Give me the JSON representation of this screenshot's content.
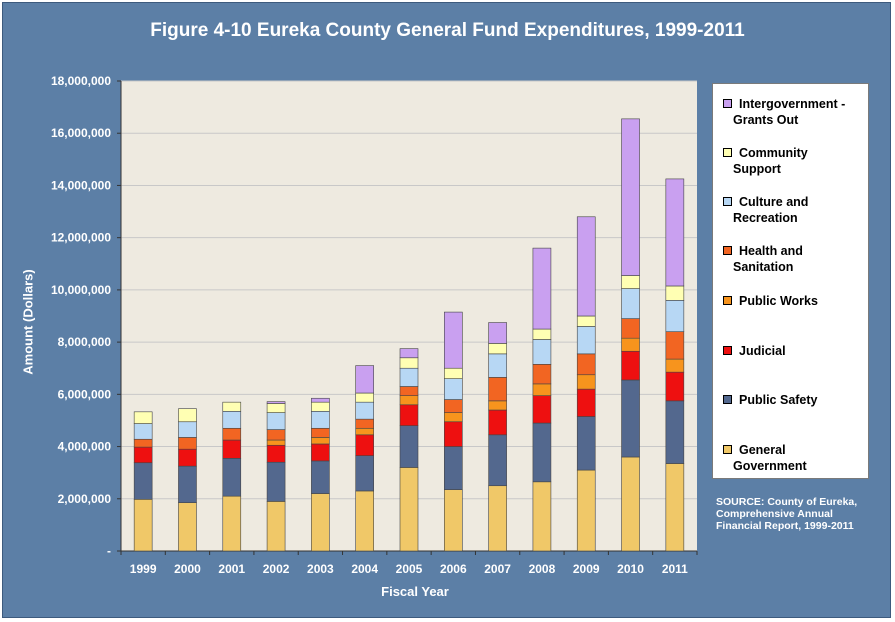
{
  "chart_data": {
    "type": "bar",
    "stacked": true,
    "title": "Figure  4-10 Eureka County General Fund Expenditures, 1999-2011",
    "xlabel": "Fiscal Year",
    "ylabel": "Amount (Dollars)",
    "ylim": [
      0,
      18000000
    ],
    "yticks": [
      {
        "value": 0,
        "label": "-"
      },
      {
        "value": 2000000,
        "label": "2,000,000"
      },
      {
        "value": 4000000,
        "label": "4,000,000"
      },
      {
        "value": 6000000,
        "label": "6,000,000"
      },
      {
        "value": 8000000,
        "label": "8,000,000"
      },
      {
        "value": 10000000,
        "label": "10,000,000"
      },
      {
        "value": 12000000,
        "label": "12,000,000"
      },
      {
        "value": 14000000,
        "label": "14,000,000"
      },
      {
        "value": 16000000,
        "label": "16,000,000"
      },
      {
        "value": 18000000,
        "label": "18,000,000"
      }
    ],
    "categories": [
      "1999",
      "2000",
      "2001",
      "2002",
      "2003",
      "2004",
      "2005",
      "2006",
      "2007",
      "2008",
      "2009",
      "2010",
      "2011"
    ],
    "series": [
      {
        "name": "General Government",
        "color": "#f0c868",
        "values": [
          1980000,
          1850000,
          2100000,
          1900000,
          2200000,
          2300000,
          3200000,
          2350000,
          2500000,
          2650000,
          3100000,
          3600000,
          3350000
        ]
      },
      {
        "name": "Public Safety",
        "color": "#53688e",
        "values": [
          1400000,
          1400000,
          1450000,
          1500000,
          1250000,
          1350000,
          1600000,
          1650000,
          1950000,
          2250000,
          2050000,
          2950000,
          2400000
        ]
      },
      {
        "name": "Judicial",
        "color": "#ee1010",
        "values": [
          600000,
          650000,
          700000,
          650000,
          650000,
          800000,
          800000,
          950000,
          950000,
          1050000,
          1050000,
          1100000,
          1100000
        ]
      },
      {
        "name": "Public Works",
        "color": "#f7941d",
        "values": [
          0,
          0,
          0,
          200000,
          250000,
          250000,
          350000,
          350000,
          350000,
          450000,
          550000,
          500000,
          500000
        ]
      },
      {
        "name": "Health and Sanitation",
        "color": "#f26522",
        "values": [
          300000,
          450000,
          450000,
          400000,
          350000,
          350000,
          350000,
          500000,
          900000,
          750000,
          800000,
          750000,
          1050000
        ]
      },
      {
        "name": "Culture and Recreation",
        "color": "#b7d7f4",
        "values": [
          600000,
          600000,
          650000,
          650000,
          650000,
          650000,
          700000,
          800000,
          900000,
          950000,
          1050000,
          1150000,
          1200000
        ]
      },
      {
        "name": "Community Support",
        "color": "#ffffb3",
        "values": [
          450000,
          500000,
          350000,
          350000,
          350000,
          350000,
          400000,
          400000,
          400000,
          400000,
          400000,
          500000,
          550000
        ]
      },
      {
        "name": "Intergovernment - Grants Out",
        "color": "#c9a0f0",
        "values": [
          0,
          0,
          0,
          70000,
          150000,
          1050000,
          350000,
          2150000,
          800000,
          3100000,
          3800000,
          6000000,
          4100000
        ]
      }
    ],
    "legend_placement": "right",
    "grid": true,
    "colors": {
      "frame": "#5c7fa6",
      "plot_bg": "#eeeae0",
      "gridline": "#c8c8c8"
    }
  },
  "legend": [
    {
      "line1": "Intergovernment -",
      "line2": "Grants Out",
      "color": "#c9a0f0"
    },
    {
      "line1": "Community",
      "line2": "Support",
      "color": "#ffffb3"
    },
    {
      "line1": "Culture and",
      "line2": "Recreation",
      "color": "#b7d7f4"
    },
    {
      "line1": "Health and",
      "line2": "Sanitation",
      "color": "#f26522"
    },
    {
      "line1": "Public Works",
      "line2": "",
      "color": "#f7941d"
    },
    {
      "line1": "Judicial",
      "line2": "",
      "color": "#ee1010"
    },
    {
      "line1": "Public Safety",
      "line2": "",
      "color": "#53688e"
    },
    {
      "line1": "General",
      "line2": "Government",
      "color": "#f0c868"
    }
  ],
  "source": {
    "line1": "SOURCE: County of Eureka,",
    "line2": "Comprehensive Annual",
    "line3": "Financial Report, 1999-2011"
  }
}
